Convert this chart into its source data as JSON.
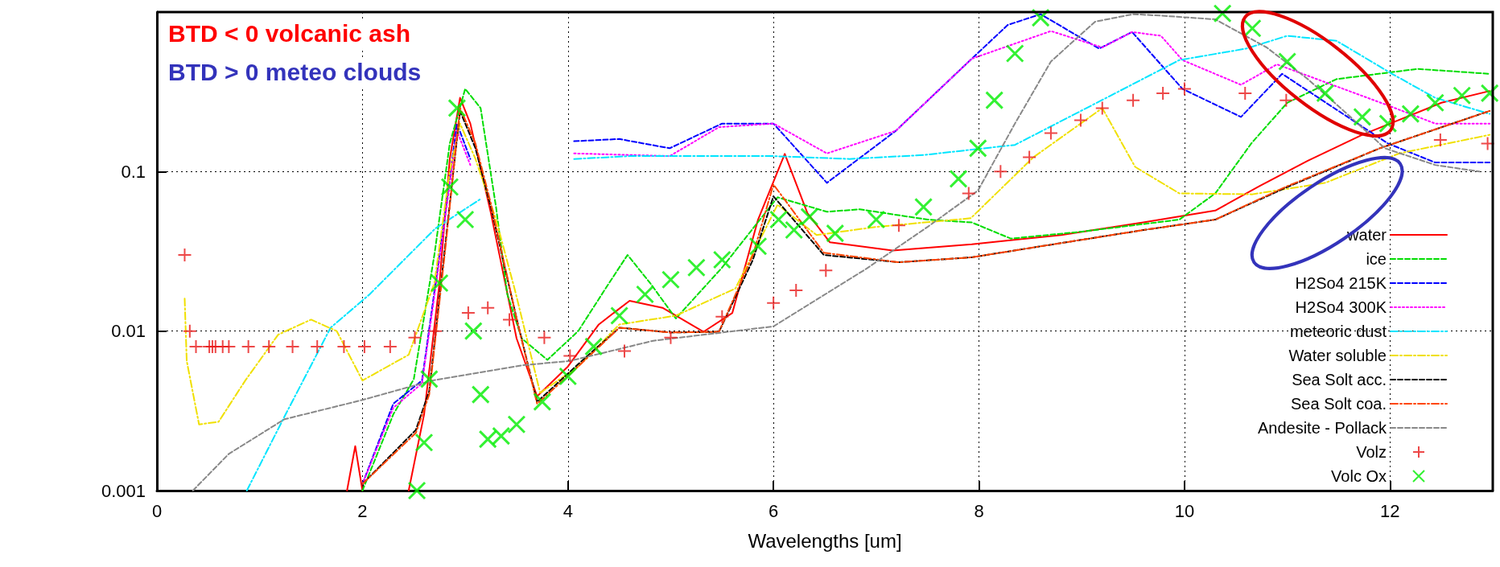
{
  "chart_data": {
    "type": "line",
    "xlabel": "Wavelengths [um]",
    "xlim": [
      0,
      13
    ],
    "xticks": [
      0,
      2,
      4,
      6,
      8,
      10,
      12
    ],
    "ylim": [
      0.001,
      1
    ],
    "yticks": [
      0.001,
      0.01,
      0.1
    ],
    "log": "y",
    "grid": true,
    "legend": "bottom right",
    "annotations": [
      "BTD < 0 volcanic ash",
      "BTD > 0 meteo clouds"
    ],
    "series": [
      {
        "name": "water",
        "color": "#ff0000",
        "line_style": "solid",
        "x": [
          1.85,
          1.93,
          2.0,
          2.2,
          2.45,
          2.6,
          2.75,
          2.85,
          2.95,
          3.05,
          3.25,
          3.5,
          3.7,
          4.0,
          4.3,
          4.6,
          4.92,
          5.32,
          5.6,
          5.85,
          6.11,
          6.33,
          6.55,
          7.16,
          7.93,
          8.8,
          9.6,
          10.3,
          10.73,
          11.2,
          11.73,
          12.5,
          12.97
        ],
        "values": [
          0.001,
          0.0019,
          0.001,
          null,
          0.001,
          0.003,
          0.02,
          0.12,
          0.29,
          0.2,
          0.055,
          0.009,
          0.0039,
          0.006,
          0.011,
          0.0155,
          0.014,
          0.0099,
          0.013,
          0.05,
          0.129,
          0.055,
          0.036,
          0.032,
          0.035,
          0.04,
          0.048,
          0.057,
          0.081,
          0.117,
          0.17,
          0.27,
          0.32
        ]
      },
      {
        "name": "ice",
        "color": "#00dd00",
        "line_style": "dashed",
        "x": [
          2.0,
          2.3,
          2.5,
          2.7,
          2.85,
          3.0,
          3.15,
          3.3,
          3.41,
          3.55,
          3.8,
          4.1,
          4.4,
          4.58,
          4.8,
          5.05,
          5.5,
          6.04,
          6.52,
          6.84,
          7.5,
          7.93,
          8.31,
          9.0,
          9.95,
          10.3,
          10.65,
          11.0,
          11.48,
          12.27,
          12.97
        ],
        "values": [
          0.001,
          0.003,
          0.005,
          0.03,
          0.15,
          0.33,
          0.25,
          0.06,
          0.017,
          0.009,
          0.0066,
          0.01,
          0.02,
          0.03,
          0.02,
          0.012,
          0.025,
          0.069,
          0.056,
          0.058,
          0.05,
          0.048,
          0.038,
          0.042,
          0.05,
          0.073,
          0.15,
          0.27,
          0.38,
          0.44,
          0.41
        ]
      },
      {
        "name": "H2So4 215K",
        "color": "#0000ff",
        "line_style": "dashed",
        "x": [
          2.0,
          2.3,
          2.58,
          2.75,
          2.92,
          3.05,
          3.5,
          4.06,
          4.5,
          4.99,
          5.5,
          6.0,
          6.52,
          7.19,
          7.93,
          8.28,
          8.6,
          9.17,
          9.49,
          9.98,
          10.55,
          10.95,
          11.98,
          12.44,
          12.97
        ],
        "values": [
          0.0011,
          0.0035,
          0.0049,
          0.03,
          0.2,
          0.12,
          null,
          0.155,
          0.16,
          0.14,
          0.2,
          0.2,
          0.085,
          0.18,
          0.51,
          0.83,
          0.97,
          0.59,
          0.75,
          0.33,
          0.22,
          0.41,
          0.15,
          0.114,
          0.114
        ]
      },
      {
        "name": "H2So4 300K",
        "color": "#ff00ff",
        "line_style": "dotted",
        "x": [
          2.0,
          2.3,
          2.58,
          2.75,
          2.92,
          3.05,
          3.5,
          4.06,
          4.99,
          5.47,
          6.0,
          6.52,
          7.19,
          7.93,
          8.7,
          9.2,
          9.49,
          9.77,
          9.98,
          10.55,
          10.9,
          11.98,
          12.44,
          12.97
        ],
        "values": [
          0.0011,
          0.0033,
          0.0047,
          0.028,
          0.18,
          0.11,
          null,
          0.13,
          0.125,
          0.19,
          0.2,
          0.13,
          0.18,
          0.51,
          0.76,
          0.6,
          0.75,
          0.71,
          0.5,
          0.35,
          0.47,
          0.26,
          0.2,
          0.2
        ]
      },
      {
        "name": "meteoric dust",
        "color": "#00e5ff",
        "line_style": "dashdot",
        "x": [
          0.875,
          1.24,
          1.69,
          2.07,
          2.71,
          3.16,
          3.5,
          4.06,
          4.6,
          6.0,
          6.74,
          7.46,
          8.35,
          9.24,
          9.95,
          10.6,
          11.0,
          11.48,
          12.02,
          12.44,
          12.97
        ],
        "values": [
          0.001,
          0.0029,
          0.0105,
          0.017,
          0.044,
          0.068,
          null,
          0.12,
          0.125,
          0.125,
          0.12,
          0.127,
          0.147,
          0.29,
          0.5,
          0.59,
          0.71,
          0.66,
          0.41,
          0.29,
          0.23
        ]
      },
      {
        "name": "Water soluble",
        "color": "#f0e000",
        "line_style": "dashdot",
        "x": [
          0.27,
          0.29,
          0.41,
          0.6,
          0.86,
          1.18,
          1.5,
          1.75,
          2.0,
          2.45,
          2.7,
          2.85,
          2.95,
          3.1,
          3.3,
          3.48,
          3.73,
          4.1,
          4.5,
          5.05,
          5.63,
          6.04,
          6.42,
          7.0,
          7.92,
          8.53,
          9.2,
          9.52,
          9.95,
          10.66,
          11.37,
          12.09,
          12.97
        ],
        "values": [
          0.016,
          0.0065,
          0.0026,
          0.0027,
          0.0049,
          0.0095,
          0.0118,
          0.01,
          0.0049,
          0.0071,
          0.02,
          0.1,
          0.2,
          0.12,
          0.05,
          0.0185,
          0.0041,
          0.006,
          0.011,
          0.0125,
          0.0185,
          0.062,
          0.04,
          0.045,
          0.051,
          0.123,
          0.25,
          0.107,
          0.073,
          0.072,
          0.085,
          0.13,
          0.17
        ]
      },
      {
        "name": "Sea Solt acc.",
        "color": "#000000",
        "line_style": "dashed",
        "x": [
          2.0,
          2.52,
          2.65,
          2.8,
          2.95,
          3.1,
          3.25,
          3.5,
          3.7,
          4.1,
          4.5,
          5.0,
          5.47,
          5.8,
          6.0,
          6.49,
          7.22,
          7.93,
          8.6,
          9.6,
          10.3,
          11.0,
          11.9,
          12.97
        ],
        "values": [
          0.0011,
          0.0024,
          0.0042,
          0.032,
          0.24,
          0.14,
          0.06,
          0.012,
          0.0036,
          0.0062,
          0.0105,
          0.0098,
          0.0099,
          0.028,
          0.07,
          0.03,
          0.027,
          0.029,
          0.034,
          0.043,
          0.05,
          0.08,
          0.14,
          0.24
        ]
      },
      {
        "name": "Sea Solt coa.",
        "color": "#ff4500",
        "line_style": "dashdot",
        "x": [
          2.0,
          2.52,
          2.65,
          2.8,
          2.95,
          3.1,
          3.25,
          3.5,
          3.7,
          4.1,
          4.5,
          5.0,
          5.47,
          5.8,
          6.0,
          6.49,
          7.22,
          7.93,
          8.6,
          9.6,
          10.3,
          11.0,
          11.9,
          12.97
        ],
        "values": [
          0.0011,
          0.0023,
          0.004,
          0.03,
          0.25,
          0.15,
          0.063,
          0.012,
          0.0035,
          0.006,
          0.0105,
          0.0098,
          0.0099,
          0.03,
          0.083,
          0.031,
          0.027,
          0.029,
          0.034,
          0.043,
          0.05,
          0.081,
          0.14,
          0.24
        ]
      },
      {
        "name": "Andesite - Pollack",
        "color": "#888888",
        "line_style": "dashed",
        "x": [
          0.35,
          0.7,
          1.24,
          2.0,
          2.68,
          3.55,
          4.02,
          4.83,
          6.0,
          6.9,
          7.5,
          7.99,
          8.35,
          8.7,
          9.13,
          9.5,
          9.77,
          10.3,
          10.8,
          11.2,
          11.55,
          11.95,
          12.44,
          12.87
        ],
        "values": [
          0.001,
          0.0017,
          0.0028,
          0.0037,
          0.0049,
          0.0061,
          0.0065,
          0.0087,
          0.0107,
          0.0245,
          0.045,
          0.076,
          0.2,
          0.49,
          0.87,
          0.97,
          0.95,
          0.9,
          0.6,
          0.38,
          0.24,
          0.14,
          0.11,
          0.1
        ]
      },
      {
        "name": "Volz",
        "type": "scatter",
        "color": "#e81a1a",
        "marker": "cross",
        "x": [
          0.27,
          0.32,
          0.38,
          0.51,
          0.54,
          0.57,
          0.64,
          0.7,
          0.89,
          1.09,
          1.32,
          1.56,
          1.82,
          2.02,
          2.27,
          2.51,
          2.71,
          3.03,
          3.22,
          3.43,
          3.77,
          4.02,
          4.55,
          5.0,
          5.5,
          6.0,
          6.22,
          6.51,
          7.22,
          7.9,
          8.21,
          8.49,
          8.7,
          8.99,
          9.2,
          9.5,
          9.79,
          10.0,
          10.59,
          10.99,
          12.49,
          12.95
        ],
        "values": [
          0.03,
          0.01,
          0.008,
          0.008,
          0.008,
          0.008,
          0.008,
          0.008,
          0.008,
          0.008,
          0.008,
          0.008,
          0.008,
          0.008,
          0.008,
          0.0091,
          0.01,
          0.013,
          0.014,
          0.0118,
          0.0091,
          0.007,
          0.0075,
          0.0091,
          0.0123,
          0.015,
          0.018,
          0.024,
          0.046,
          0.073,
          0.1,
          0.123,
          0.174,
          0.21,
          0.25,
          0.28,
          0.31,
          0.33,
          0.31,
          0.28,
          0.158,
          0.15
        ]
      },
      {
        "name": "Volc Ox",
        "type": "scatter",
        "color": "#00ee00",
        "marker": "x",
        "x": [
          2.53,
          2.6,
          2.65,
          2.75,
          2.85,
          2.92,
          3.0,
          3.08,
          3.15,
          3.22,
          3.35,
          3.5,
          3.75,
          4.0,
          4.25,
          4.5,
          4.75,
          5.0,
          5.25,
          5.5,
          5.85,
          6.05,
          6.2,
          6.35,
          6.6,
          7.0,
          7.46,
          7.8,
          7.99,
          8.15,
          8.35,
          8.6,
          10.37,
          10.66,
          11.0,
          11.37,
          11.73,
          11.98,
          12.2,
          12.44,
          12.7,
          12.97
        ],
        "values": [
          0.001,
          0.002,
          0.005,
          0.02,
          0.08,
          0.25,
          0.05,
          0.01,
          0.004,
          0.0021,
          0.0022,
          0.0026,
          0.0036,
          0.0052,
          0.008,
          0.0125,
          0.017,
          0.021,
          0.025,
          0.028,
          0.034,
          0.05,
          0.043,
          0.052,
          0.041,
          0.05,
          0.06,
          0.09,
          0.14,
          0.28,
          0.55,
          0.92,
          0.98,
          0.79,
          0.49,
          0.31,
          0.22,
          0.2,
          0.23,
          0.27,
          0.3,
          0.31
        ]
      }
    ]
  }
}
